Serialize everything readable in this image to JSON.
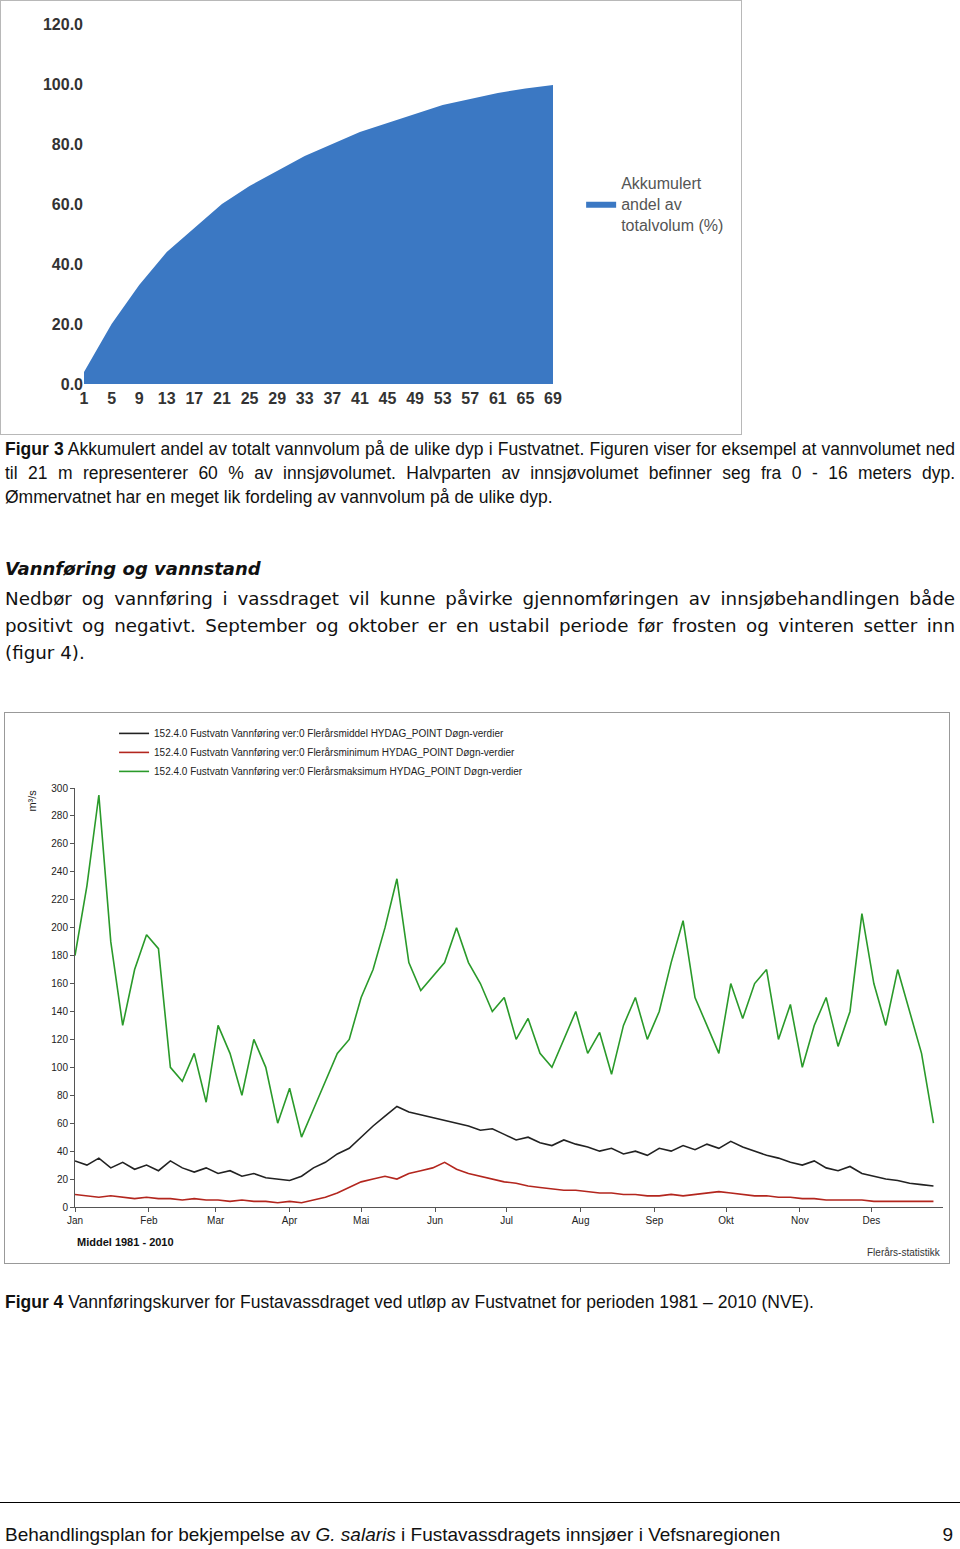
{
  "chart_data": [
    {
      "type": "area",
      "x": [
        1,
        5,
        9,
        13,
        17,
        21,
        25,
        29,
        33,
        37,
        41,
        45,
        49,
        53,
        57,
        61,
        65,
        69
      ],
      "series": [
        {
          "name": "Akkumulert andel av totalvolum (%)",
          "color": "#3b78c3",
          "values": [
            4,
            20,
            33,
            44,
            52,
            60,
            66,
            71,
            76,
            80,
            84,
            87,
            90,
            93,
            95,
            97,
            98.5,
            99.7
          ]
        }
      ],
      "xlim": [
        1,
        69
      ],
      "xticks": [
        1,
        5,
        9,
        13,
        17,
        21,
        25,
        29,
        33,
        37,
        41,
        45,
        49,
        53,
        57,
        61,
        65,
        69
      ],
      "ylim": [
        0,
        120
      ],
      "yticks": [
        {
          "value": 0,
          "label": "0.0"
        },
        {
          "value": 20,
          "label": "20.0"
        },
        {
          "value": 40,
          "label": "40.0"
        },
        {
          "value": 60,
          "label": "60.0"
        },
        {
          "value": 80,
          "label": "80.0"
        },
        {
          "value": 100,
          "label": "100.0"
        },
        {
          "value": 120,
          "label": "120.0"
        }
      ],
      "grid": false,
      "legend": "right"
    },
    {
      "type": "line",
      "x": [
        1,
        6,
        11,
        16,
        21,
        26,
        31,
        36,
        41,
        46,
        51,
        56,
        61,
        66,
        71,
        76,
        81,
        86,
        91,
        96,
        101,
        106,
        111,
        116,
        121,
        126,
        131,
        136,
        141,
        146,
        151,
        156,
        161,
        166,
        171,
        176,
        181,
        186,
        191,
        196,
        201,
        206,
        211,
        216,
        221,
        226,
        231,
        236,
        241,
        246,
        251,
        256,
        261,
        266,
        271,
        276,
        281,
        286,
        291,
        296,
        301,
        306,
        311,
        316,
        321,
        326,
        331,
        336,
        341,
        346,
        351,
        356,
        361
      ],
      "series": [
        {
          "name": "152.4.0 Fustvatn Vannføring ver:0 Flerårsmiddel HYDAG_POINT Døgn-verdier",
          "color": "#222222",
          "values": [
            33,
            30,
            35,
            28,
            32,
            27,
            30,
            26,
            33,
            28,
            25,
            28,
            24,
            26,
            22,
            24,
            21,
            20,
            19,
            22,
            28,
            32,
            38,
            42,
            50,
            58,
            65,
            72,
            68,
            66,
            64,
            62,
            60,
            58,
            55,
            56,
            52,
            48,
            50,
            46,
            44,
            48,
            45,
            43,
            40,
            42,
            38,
            40,
            37,
            42,
            40,
            44,
            41,
            45,
            42,
            47,
            43,
            40,
            37,
            35,
            32,
            30,
            33,
            28,
            26,
            29,
            24,
            22,
            20,
            19,
            17,
            16,
            15
          ]
        },
        {
          "name": "152.4.0 Fustvatn Vannføring ver:0 Flerårsminimum HYDAG_POINT Døgn-verdier",
          "color": "#b3261e",
          "values": [
            9,
            8,
            7,
            8,
            7,
            6,
            7,
            6,
            6,
            5,
            6,
            5,
            5,
            4,
            5,
            4,
            4,
            3,
            4,
            3,
            5,
            7,
            10,
            14,
            18,
            20,
            22,
            20,
            24,
            26,
            28,
            32,
            27,
            24,
            22,
            20,
            18,
            17,
            15,
            14,
            13,
            12,
            12,
            11,
            10,
            10,
            9,
            9,
            8,
            8,
            9,
            8,
            9,
            10,
            11,
            10,
            9,
            8,
            8,
            7,
            7,
            6,
            6,
            5,
            5,
            5,
            5,
            4,
            4,
            4,
            4,
            4,
            4
          ]
        },
        {
          "name": "152.4.0 Fustvatn Vannføring ver:0 Flerårsmaksimum HYDAG_POINT Døgn-verdier",
          "color": "#2a9a2a",
          "values": [
            180,
            230,
            295,
            190,
            130,
            170,
            195,
            185,
            100,
            90,
            110,
            75,
            130,
            110,
            80,
            120,
            100,
            60,
            85,
            50,
            70,
            90,
            110,
            120,
            150,
            170,
            200,
            235,
            175,
            155,
            165,
            175,
            200,
            175,
            160,
            140,
            150,
            120,
            135,
            110,
            100,
            120,
            140,
            110,
            125,
            95,
            130,
            150,
            120,
            140,
            175,
            205,
            150,
            130,
            110,
            160,
            135,
            160,
            170,
            120,
            145,
            100,
            130,
            150,
            115,
            140,
            210,
            160,
            130,
            170,
            140,
            110,
            60
          ]
        }
      ],
      "xlim": [
        1,
        365
      ],
      "xticks": [
        {
          "value": 1,
          "label": "Jan"
        },
        {
          "value": 32,
          "label": "Feb"
        },
        {
          "value": 60,
          "label": "Mar"
        },
        {
          "value": 91,
          "label": "Apr"
        },
        {
          "value": 121,
          "label": "Mai"
        },
        {
          "value": 152,
          "label": "Jun"
        },
        {
          "value": 182,
          "label": "Jul"
        },
        {
          "value": 213,
          "label": "Aug"
        },
        {
          "value": 244,
          "label": "Sep"
        },
        {
          "value": 274,
          "label": "Okt"
        },
        {
          "value": 305,
          "label": "Nov"
        },
        {
          "value": 335,
          "label": "Des"
        }
      ],
      "ylim": [
        0,
        300
      ],
      "yticks": [
        0,
        20,
        40,
        60,
        80,
        100,
        120,
        140,
        160,
        180,
        200,
        220,
        240,
        260,
        280,
        300
      ],
      "ylabel": "m³/s",
      "annotations": [
        "Middel 1981 - 2010",
        "Flerårs-statistikk"
      ],
      "grid": false,
      "legend": "top-left"
    }
  ],
  "captions": [
    {
      "label": "Figur 3",
      "text": "Akkumulert andel av totalt vannvolum på de ulike dyp i Fustvatnet. Figuren viser for eksempel at vannvolumet ned til 21 m representerer 60 % av innsjøvolumet. Halvparten av innsjøvolumet befinner seg fra 0 - 16 meters dyp. Ømmervatnet har en meget lik fordeling av vannvolum på de ulike dyp."
    },
    {
      "label": "Figur 4",
      "text": "Vannføringskurver for Fustavassdraget ved utløp av Fustvatnet for perioden 1981 – 2010 (NVE)."
    }
  ],
  "section": {
    "heading": "Vannføring og vannstand",
    "text": "Nedbør og vannføring i vassdraget vil kunne påvirke gjennomføringen av innsjøbehandlingen både positivt og negativt. September og oktober er en ustabil periode før frosten og vinteren setter inn (figur 4)."
  },
  "footer": {
    "text_before": "Behandlingsplan for bekjempelse av ",
    "italic": "G. salaris",
    "text_after": " i Fustavassdragets innsjøer i Vefsnaregionen",
    "page": "9"
  }
}
